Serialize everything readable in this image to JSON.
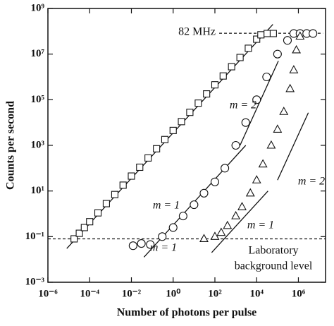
{
  "chart_data": {
    "type": "scatter",
    "xlabel": "Number of photons per pulse",
    "ylabel": "Counts per second",
    "xscale": "log",
    "yscale": "log",
    "xlim": [
      1e-06,
      20000000.0
    ],
    "ylim": [
      0.001,
      1000000000.0
    ],
    "xticks": [
      {
        "value": 1e-06,
        "label": "10⁻⁶"
      },
      {
        "value": 0.0001,
        "label": "10⁻⁴"
      },
      {
        "value": 0.01,
        "label": "10⁻²"
      },
      {
        "value": 1,
        "label": "10⁰"
      },
      {
        "value": 100,
        "label": "10²"
      },
      {
        "value": 10000.0,
        "label": "10⁴"
      },
      {
        "value": 1000000.0,
        "label": "10⁶"
      }
    ],
    "yticks": [
      {
        "value": 0.001,
        "label": "10⁻³"
      },
      {
        "value": 0.1,
        "label": "10⁻¹"
      },
      {
        "value": 10,
        "label": "10¹"
      },
      {
        "value": 1000,
        "label": "10³"
      },
      {
        "value": 100000.0,
        "label": "10⁵"
      },
      {
        "value": 10000000.0,
        "label": "10⁷"
      },
      {
        "value": 1000000000.0,
        "label": "10⁹"
      }
    ],
    "series": [
      {
        "marker": "square",
        "color": "#111111",
        "x": [
          1.8e-05,
          3.2e-05,
          5.6e-05,
          0.0001,
          0.00025,
          0.00063,
          0.0016,
          0.004,
          0.01,
          0.025,
          0.063,
          0.16,
          0.4,
          1,
          2.5,
          6.3,
          16,
          40,
          100,
          250,
          630,
          1600,
          4000,
          10000.0,
          16000.0,
          32000.0,
          63000.0
        ],
        "values": [
          0.08,
          0.14,
          0.25,
          0.45,
          1.1,
          2.8,
          7,
          18,
          45,
          110,
          280,
          710,
          1800,
          4500,
          11000.0,
          28000.0,
          71000.0,
          180000.0,
          450000.0,
          1100000.0,
          2800000.0,
          7100000.0,
          18000000.0,
          45000000.0,
          70000000.0,
          80000000.0,
          80000000.0
        ]
      },
      {
        "marker": "circle",
        "color": "#111111",
        "x": [
          0.012,
          0.03,
          0.08,
          0.3,
          1,
          3,
          10,
          30,
          100,
          300,
          1000,
          3000,
          10000.0,
          30000.0,
          100000.0,
          300000.0,
          600000.0,
          1200000.0,
          2500000.0,
          5000000.0
        ],
        "values": [
          0.04,
          0.05,
          0.045,
          0.1,
          0.25,
          0.8,
          2.5,
          8,
          25,
          100,
          1000,
          10000.0,
          100000.0,
          1000000.0,
          10000000.0,
          40000000.0,
          80000000.0,
          80000000.0,
          80000000.0,
          80000000.0
        ]
      },
      {
        "marker": "triangle",
        "color": "#111111",
        "x": [
          30,
          100,
          200,
          400,
          1000,
          2000,
          5000,
          10000.0,
          20000.0,
          50000.0,
          100000.0,
          200000.0,
          400000.0,
          600000.0,
          800000.0,
          1200000.0
        ],
        "values": [
          0.08,
          0.1,
          0.15,
          0.3,
          0.8,
          2,
          8,
          30,
          150,
          1000,
          5000,
          30000.0,
          300000.0,
          2000000.0,
          15000000.0,
          60000000.0
        ]
      }
    ],
    "fit_lines": [
      {
        "x": [
          8e-06,
          60000.0
        ],
        "y": [
          0.03,
          200000000.0
        ]
      },
      {
        "x": [
          0.04,
          3000
        ],
        "y": [
          0.0126,
          1000
        ]
      },
      {
        "x": [
          1600,
          110000.0
        ],
        "y": [
          1000,
          5000000.0
        ]
      },
      {
        "x": [
          70,
          35000.0
        ],
        "y": [
          0.02,
          10
        ]
      },
      {
        "x": [
          100000.0,
          3000000.0
        ],
        "y": [
          30,
          27000.0
        ]
      }
    ],
    "reference_lines": [
      {
        "x": [
          160,
          15000000.0
        ],
        "y": [
          82000000.0,
          82000000.0
        ]
      },
      {
        "x": [
          1e-06,
          20000000.0
        ],
        "y": [
          0.08,
          0.08
        ]
      }
    ],
    "annotations": [
      "82 MHz",
      "m = 2",
      "m = 1",
      "m = 1",
      "m = 2",
      "m = 1",
      "Laboratory",
      "background level"
    ]
  }
}
